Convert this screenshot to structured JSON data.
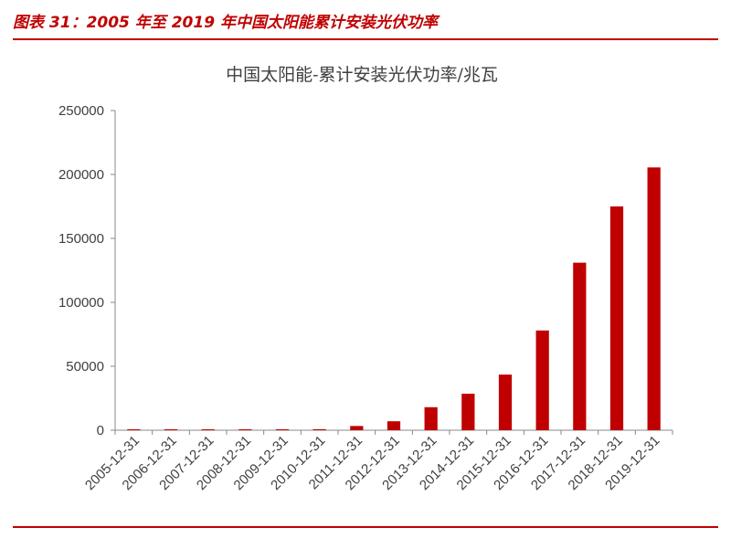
{
  "figure_caption": "图表 31：2005 年至 2019 年中国太阳能累计安装光伏功率",
  "colors": {
    "accent": "#c00000",
    "bar": "#c00000",
    "axis": "#888888",
    "text": "#404040"
  },
  "chart_data": {
    "type": "bar",
    "title": "中国太阳能-累计安装光伏功率/兆瓦",
    "xlabel": "",
    "ylabel": "",
    "categories": [
      "2005-12-31",
      "2006-12-31",
      "2007-12-31",
      "2008-12-31",
      "2009-12-31",
      "2010-12-31",
      "2011-12-31",
      "2012-12-31",
      "2013-12-31",
      "2014-12-31",
      "2015-12-31",
      "2016-12-31",
      "2017-12-31",
      "2018-12-31",
      "2019-12-31"
    ],
    "values": [
      70,
      80,
      100,
      140,
      300,
      800,
      3300,
      7000,
      18000,
      28500,
      43500,
      78000,
      131000,
      175000,
      205500
    ],
    "ylim": [
      0,
      250000
    ],
    "yticks": [
      "0",
      "50000",
      "100000",
      "150000",
      "200000",
      "250000"
    ],
    "grid": false,
    "legend": "none"
  }
}
